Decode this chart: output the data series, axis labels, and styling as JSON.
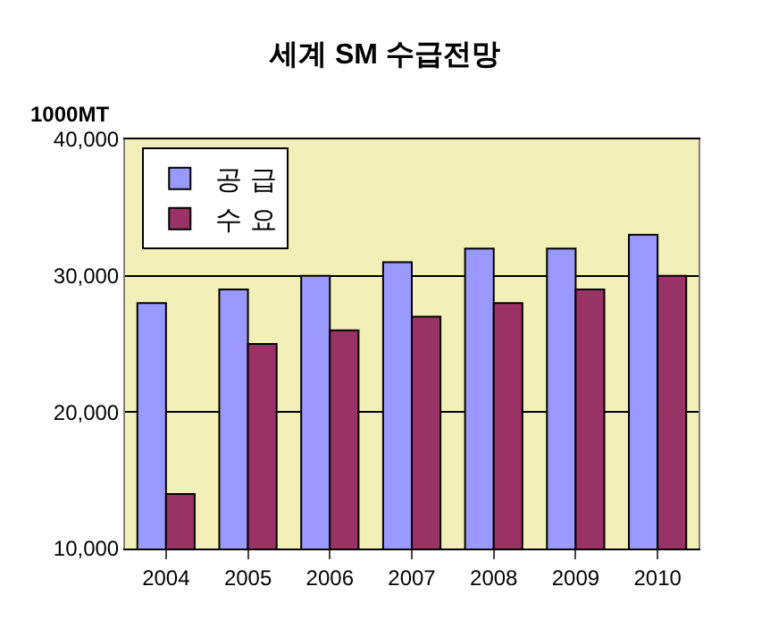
{
  "chart_data": {
    "type": "bar",
    "title": "세계 SM 수급전망",
    "ylabel": "1000MT",
    "categories": [
      "2004",
      "2005",
      "2006",
      "2007",
      "2008",
      "2009",
      "2010"
    ],
    "series": [
      {
        "name": "공 급",
        "color": "#9999ff",
        "values": [
          28000,
          29000,
          30000,
          31000,
          32000,
          32000,
          33000
        ]
      },
      {
        "name": "수 요",
        "color": "#993366",
        "values": [
          14000,
          25000,
          26000,
          27000,
          28000,
          29000,
          30000
        ]
      }
    ],
    "ylim": [
      10000,
      40000
    ],
    "yticks": [
      {
        "value": 10000,
        "label": "10,000"
      },
      {
        "value": 20000,
        "label": "20,000"
      },
      {
        "value": 30000,
        "label": "30,000"
      },
      {
        "value": 40000,
        "label": "40,000"
      }
    ],
    "grid": "y",
    "legend": "top left"
  }
}
